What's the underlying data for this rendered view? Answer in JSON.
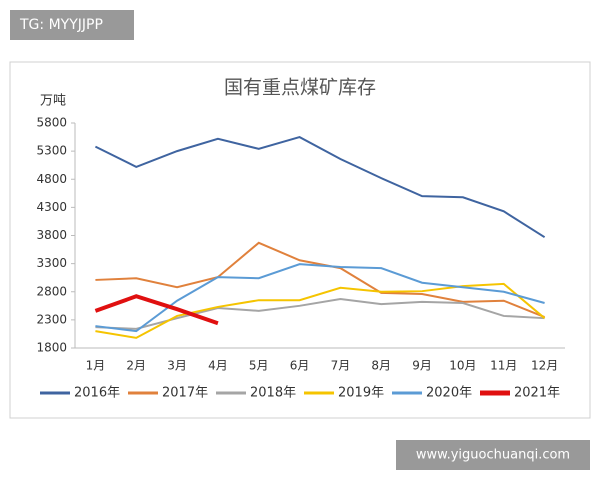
{
  "watermarks": [
    "TG: MYYJJPP",
    "www.yiguochuanqi.com"
  ],
  "chart_data": {
    "type": "line",
    "title": "国有重点煤矿库存",
    "y_label": "万吨",
    "categories": [
      "1月",
      "2月",
      "3月",
      "4月",
      "5月",
      "6月",
      "7月",
      "8月",
      "9月",
      "10月",
      "11月",
      "12月"
    ],
    "series": [
      {
        "name": "2016年",
        "color": "#3f64a0",
        "width": 2,
        "values": [
          5380,
          5020,
          5300,
          5520,
          5340,
          5550,
          5160,
          4820,
          4500,
          4480,
          4230,
          3770
        ]
      },
      {
        "name": "2017年",
        "color": "#e0813c",
        "width": 2,
        "values": [
          3010,
          3040,
          2880,
          3060,
          3670,
          3360,
          3220,
          2780,
          2760,
          2620,
          2640,
          2350
        ]
      },
      {
        "name": "2018年",
        "color": "#a5a5a5",
        "width": 2,
        "values": [
          2170,
          2140,
          2330,
          2510,
          2460,
          2550,
          2670,
          2580,
          2620,
          2600,
          2370,
          2330
        ]
      },
      {
        "name": "2019年",
        "color": "#f5c400",
        "width": 2,
        "values": [
          2100,
          1980,
          2370,
          2530,
          2650,
          2650,
          2870,
          2800,
          2810,
          2900,
          2940,
          2330
        ]
      },
      {
        "name": "2020年",
        "color": "#5b9bd5",
        "width": 2,
        "values": [
          2190,
          2100,
          2640,
          3060,
          3040,
          3290,
          3240,
          3220,
          2960,
          2880,
          2800,
          2600
        ]
      },
      {
        "name": "2021年",
        "color": "#e01010",
        "width": 4,
        "values": [
          2460,
          2720,
          2490,
          2240,
          null,
          null,
          null,
          null,
          null,
          null,
          null,
          null
        ]
      }
    ],
    "ylim": [
      1800,
      5800
    ],
    "yticks": [
      1800,
      2300,
      2800,
      3300,
      3800,
      4300,
      4800,
      5300,
      5800
    ],
    "grid": false,
    "legend": "bottom"
  }
}
